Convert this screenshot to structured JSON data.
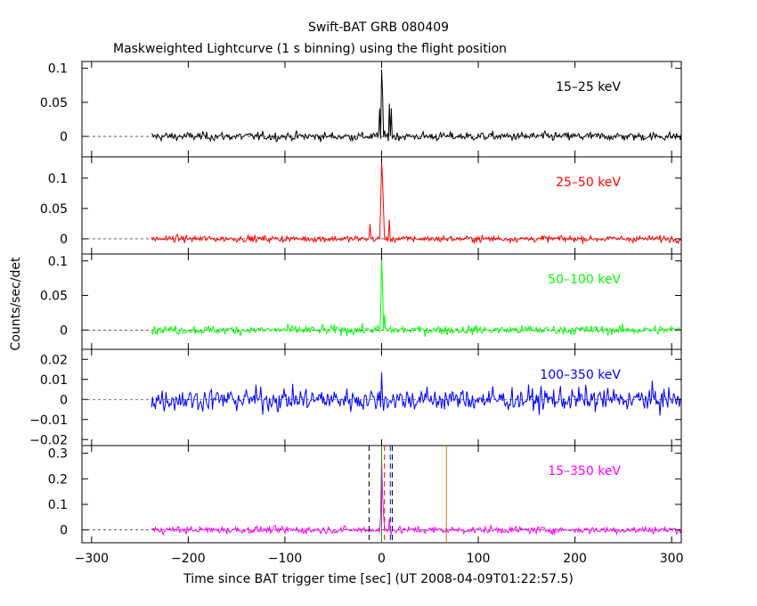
{
  "title": "Swift-BAT GRB 080409",
  "subtitle": "Maskweighted Lightcurve (1 s binning) using the flight position",
  "xlabel": "Time since BAT trigger time [sec] (UT 2008-04-09T01:22:57.5)",
  "ylabel": "Counts/sec/det",
  "chart_data": {
    "type": "line",
    "title": "Swift-BAT GRB 080409",
    "subtitle": "Maskweighted Lightcurve (1 s binning) using the flight position",
    "xlabel": "Time since BAT trigger time [sec] (UT 2008-04-09T01:22:57.5)",
    "ylabel": "Counts/sec/det",
    "xlim": [
      -310,
      310
    ],
    "x_ticks": [
      -300,
      -200,
      -100,
      0,
      100,
      200,
      300
    ],
    "x_tick_labels": [
      "−300",
      "−200",
      "−100",
      "0",
      "100",
      "200",
      "300"
    ],
    "data_start": -238,
    "data_end": 310,
    "panels": [
      {
        "band": "15–25 keV",
        "color": "#000000",
        "ylim": [
          -0.03,
          0.11
        ],
        "y_ticks": [
          0,
          0.05,
          0.1
        ],
        "y_tick_labels": [
          "0",
          "0.05",
          "0.1"
        ],
        "noise_sigma": 0.006,
        "peaks": [
          [
            -2,
            0.04
          ],
          [
            0,
            0.1
          ],
          [
            1,
            0.06
          ],
          [
            8,
            0.05
          ],
          [
            10,
            0.04
          ]
        ]
      },
      {
        "band": "25–50 keV",
        "color": "#ff0000",
        "ylim": [
          -0.025,
          0.135
        ],
        "y_ticks": [
          0,
          0.05,
          0.1
        ],
        "y_tick_labels": [
          "0",
          "0.05",
          "0.1"
        ],
        "noise_sigma": 0.005,
        "peaks": [
          [
            -12,
            0.025
          ],
          [
            -1,
            0.05
          ],
          [
            0,
            0.13
          ],
          [
            1,
            0.09
          ],
          [
            2,
            0.05
          ],
          [
            8,
            0.025
          ]
        ]
      },
      {
        "band": "50–100 keV",
        "color": "#00ff00",
        "ylim": [
          -0.028,
          0.11
        ],
        "y_ticks": [
          0,
          0.05,
          0.1
        ],
        "y_tick_labels": [
          "0",
          "0.05",
          "0.1"
        ],
        "noise_sigma": 0.006,
        "peaks": [
          [
            -1,
            0.02
          ],
          [
            0,
            0.1
          ],
          [
            1,
            0.06
          ],
          [
            3,
            0.02
          ]
        ]
      },
      {
        "band": "100–350 keV",
        "color": "#0000ff",
        "ylim": [
          -0.023,
          0.025
        ],
        "y_ticks": [
          -0.02,
          -0.01,
          0,
          0.01,
          0.02
        ],
        "y_tick_labels": [
          "−0.02",
          "−0.01",
          "0",
          "0.01",
          "0.02"
        ],
        "noise_sigma": 0.0055,
        "peaks": [
          [
            0,
            0.014
          ]
        ]
      },
      {
        "band": "15–350 keV",
        "color": "#ff00ff",
        "ylim": [
          -0.05,
          0.33
        ],
        "y_ticks": [
          0,
          0.1,
          0.2,
          0.3
        ],
        "y_tick_labels": [
          "0",
          "0.1",
          "0.2",
          "0.3"
        ],
        "noise_sigma": 0.013,
        "peaks": [
          [
            -1,
            0.06
          ],
          [
            0,
            0.28
          ],
          [
            1,
            0.13
          ],
          [
            2,
            0.06
          ],
          [
            8,
            0.05
          ]
        ]
      }
    ],
    "vlines": [
      {
        "x": -13,
        "color": "#000000",
        "dash": true
      },
      {
        "x": 11,
        "color": "#000000",
        "dash": true
      },
      {
        "x": 0,
        "color": "#00aa00",
        "dash": false
      },
      {
        "x": 3,
        "color": "#ff0000",
        "dash": true
      },
      {
        "x": 9,
        "color": "#0000ff",
        "dash": true
      },
      {
        "x": 67,
        "color": "#b8860b",
        "dash": false
      }
    ]
  }
}
